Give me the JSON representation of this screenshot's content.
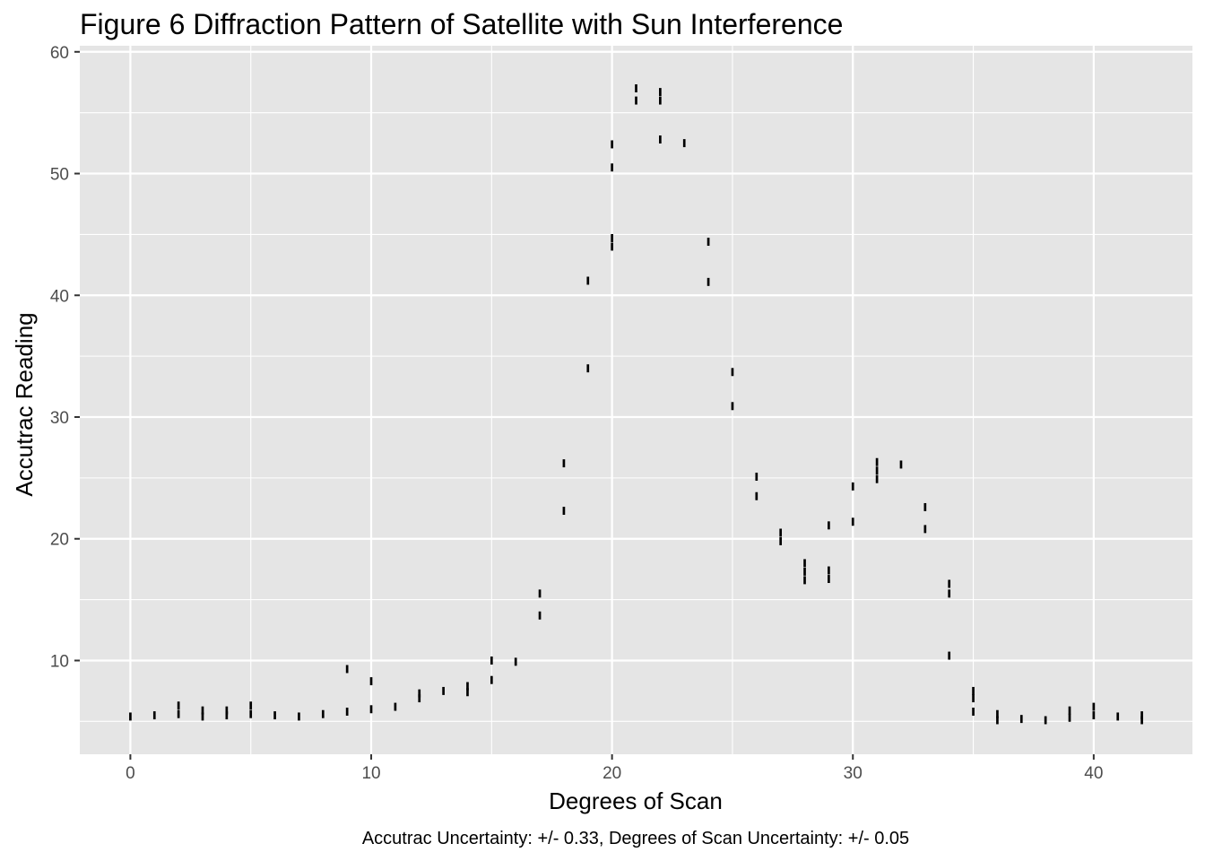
{
  "chart_data": {
    "type": "errorbar",
    "title": "Figure 6 Diffraction Pattern of Satellite with Sun Interference",
    "xlabel": "Degrees of Scan",
    "ylabel": "Accutrac Reading",
    "caption": "Accutrac Uncertainty: +/- 0.33, Degrees of Scan Uncertainty: +/- 0.05",
    "xlim": [
      -2.1,
      44.1
    ],
    "ylim": [
      2.3,
      60.5
    ],
    "x_ticks": [
      0,
      10,
      20,
      30,
      40
    ],
    "y_ticks": [
      10,
      20,
      30,
      40,
      50,
      60
    ],
    "grid": true,
    "x_uncertainty": 0.05,
    "y_uncertainty": 0.33,
    "colors": {
      "panel": "#e5e5e5",
      "grid": "#ffffff",
      "marks": "#000000",
      "tick_label": "#4d4d4d"
    },
    "points": [
      {
        "x": 0,
        "y": 5.4
      },
      {
        "x": 1,
        "y": 5.5
      },
      {
        "x": 2,
        "y": 5.6
      },
      {
        "x": 2,
        "y": 6.3
      },
      {
        "x": 3,
        "y": 5.4
      },
      {
        "x": 3,
        "y": 5.9
      },
      {
        "x": 4,
        "y": 5.5
      },
      {
        "x": 4,
        "y": 5.9
      },
      {
        "x": 5,
        "y": 5.6
      },
      {
        "x": 5,
        "y": 6.3
      },
      {
        "x": 6,
        "y": 5.5
      },
      {
        "x": 7,
        "y": 5.4
      },
      {
        "x": 8,
        "y": 5.6
      },
      {
        "x": 9,
        "y": 5.8
      },
      {
        "x": 9,
        "y": 9.3
      },
      {
        "x": 10,
        "y": 6.0
      },
      {
        "x": 10,
        "y": 8.3
      },
      {
        "x": 11,
        "y": 6.2
      },
      {
        "x": 12,
        "y": 6.9
      },
      {
        "x": 12,
        "y": 7.3
      },
      {
        "x": 13,
        "y": 7.5
      },
      {
        "x": 14,
        "y": 7.4
      },
      {
        "x": 14,
        "y": 7.9
      },
      {
        "x": 15,
        "y": 8.4
      },
      {
        "x": 15,
        "y": 10.0
      },
      {
        "x": 16,
        "y": 9.9
      },
      {
        "x": 17,
        "y": 13.7
      },
      {
        "x": 17,
        "y": 15.5
      },
      {
        "x": 18,
        "y": 22.3
      },
      {
        "x": 18,
        "y": 26.2
      },
      {
        "x": 19,
        "y": 34.0
      },
      {
        "x": 19,
        "y": 41.2
      },
      {
        "x": 20,
        "y": 44.0
      },
      {
        "x": 20,
        "y": 44.7
      },
      {
        "x": 20,
        "y": 50.5
      },
      {
        "x": 20,
        "y": 52.4
      },
      {
        "x": 21,
        "y": 56.0
      },
      {
        "x": 21,
        "y": 57.0
      },
      {
        "x": 22,
        "y": 52.8
      },
      {
        "x": 22,
        "y": 56.0
      },
      {
        "x": 22,
        "y": 56.7
      },
      {
        "x": 23,
        "y": 52.5
      },
      {
        "x": 24,
        "y": 41.1
      },
      {
        "x": 24,
        "y": 44.4
      },
      {
        "x": 25,
        "y": 30.9
      },
      {
        "x": 25,
        "y": 33.7
      },
      {
        "x": 26,
        "y": 23.5
      },
      {
        "x": 26,
        "y": 25.1
      },
      {
        "x": 27,
        "y": 19.8
      },
      {
        "x": 27,
        "y": 20.5
      },
      {
        "x": 28,
        "y": 16.6
      },
      {
        "x": 28,
        "y": 17.3
      },
      {
        "x": 28,
        "y": 18.0
      },
      {
        "x": 29,
        "y": 16.7
      },
      {
        "x": 29,
        "y": 17.4
      },
      {
        "x": 29,
        "y": 21.1
      },
      {
        "x": 30,
        "y": 21.4
      },
      {
        "x": 30,
        "y": 24.3
      },
      {
        "x": 31,
        "y": 24.9
      },
      {
        "x": 31,
        "y": 25.6
      },
      {
        "x": 31,
        "y": 26.3
      },
      {
        "x": 32,
        "y": 26.1
      },
      {
        "x": 33,
        "y": 20.8
      },
      {
        "x": 33,
        "y": 22.6
      },
      {
        "x": 34,
        "y": 10.4
      },
      {
        "x": 34,
        "y": 15.5
      },
      {
        "x": 34,
        "y": 16.3
      },
      {
        "x": 35,
        "y": 5.8
      },
      {
        "x": 35,
        "y": 6.9
      },
      {
        "x": 35,
        "y": 7.5
      },
      {
        "x": 36,
        "y": 5.1
      },
      {
        "x": 36,
        "y": 5.6
      },
      {
        "x": 37,
        "y": 5.2
      },
      {
        "x": 38,
        "y": 5.1
      },
      {
        "x": 39,
        "y": 5.3
      },
      {
        "x": 39,
        "y": 5.9
      },
      {
        "x": 40,
        "y": 5.5
      },
      {
        "x": 40,
        "y": 6.2
      },
      {
        "x": 41,
        "y": 5.4
      },
      {
        "x": 42,
        "y": 5.1
      },
      {
        "x": 42,
        "y": 5.5
      }
    ]
  }
}
